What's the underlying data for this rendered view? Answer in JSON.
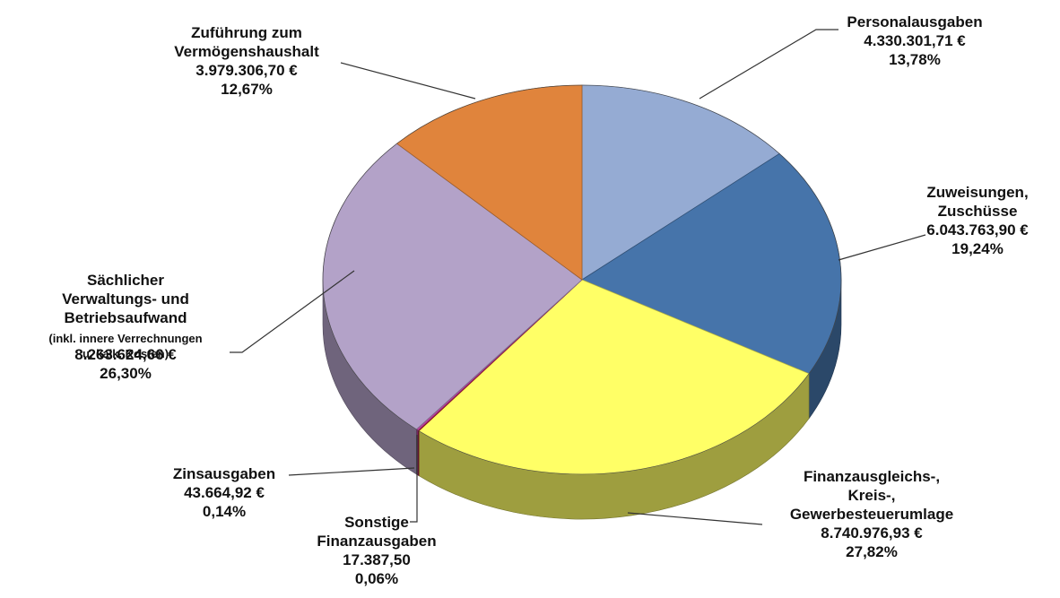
{
  "chart_data": {
    "type": "pie3d",
    "categories": [
      "Personalausgaben",
      "Zuweisungen,\nZuschüsse",
      "Finanzausgleichs-,\nKreis-,\nGewerbesteuerumlage",
      "Sonstige\nFinanzausgaben",
      "Zinsausgaben",
      "Sächlicher\nVerwaltungs- und\nBetriebsaufwand",
      "Zuführung zum\nVermögenshaushalt"
    ],
    "category_notes": [
      null,
      null,
      null,
      null,
      null,
      "(inkl. innere Verrechnungen\nu. kalk. Kosten)",
      null
    ],
    "values": [
      4330301.71,
      6043763.9,
      8740976.93,
      17387.5,
      43664.92,
      8263624.66,
      3979306.7
    ],
    "value_labels": [
      "4.330.301,71 €",
      "6.043.763,90 €",
      "8.740.976,93 €",
      "17.387,50",
      "43.664,92 €",
      "8.263.624,66 €",
      "3.979.306,70 €"
    ],
    "percents": [
      13.78,
      19.24,
      27.82,
      0.06,
      0.14,
      26.3,
      12.67
    ],
    "percent_labels": [
      "13,78%",
      "19,24%",
      "27,82%",
      "0,06%",
      "0,14%",
      "26,30%",
      "12,67%"
    ],
    "colors": [
      "#95abd3",
      "#4674aa",
      "#ffff66",
      "#cc1020",
      "#c040a0",
      "#b3a2c8",
      "#e0843c"
    ]
  }
}
